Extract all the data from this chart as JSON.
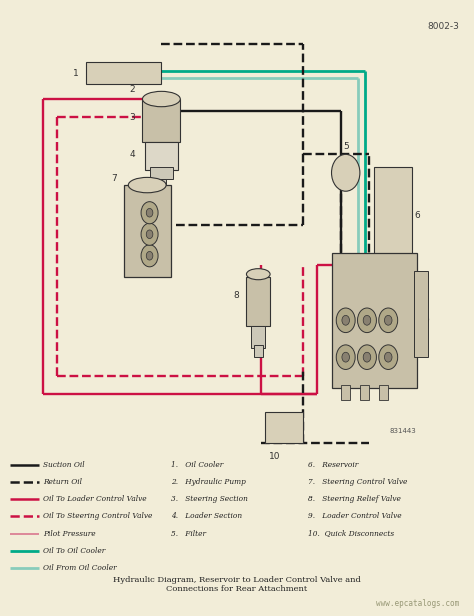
{
  "bg_color": "#f2edd8",
  "title_text": "8002-3",
  "diagram_title": "Hydraulic Diagram, Reservoir to Loader Control Valve and\nConnections for Rear Attachment",
  "watermark": "www.epcatalogs.com",
  "ref_code": "831443",
  "colors": {
    "suction_oil": "#1a1a1a",
    "return_oil": "#1a1a1a",
    "oil_to_loader": "#cc1144",
    "oil_to_steering": "#cc1144",
    "pilot_pressure": "#dd8899",
    "oil_to_cooler": "#00aa88",
    "oil_from_cooler": "#88ccbb"
  },
  "legend_entries": [
    {
      "label": "Suction Oil",
      "color": "#1a1a1a",
      "linestyle": "-",
      "lw": 1.8
    },
    {
      "label": "Return Oil",
      "color": "#1a1a1a",
      "linestyle": "--",
      "lw": 1.8
    },
    {
      "label": "Oil To Loader Control Valve",
      "color": "#cc1144",
      "linestyle": "-",
      "lw": 1.8
    },
    {
      "label": "Oil To Steering Control Valve",
      "color": "#cc1144",
      "linestyle": "--",
      "lw": 1.8
    },
    {
      "label": "Pilot Pressure",
      "color": "#dd8899",
      "linestyle": "-",
      "lw": 1.4
    },
    {
      "label": "Oil To Oil Cooler",
      "color": "#00aa88",
      "linestyle": "-",
      "lw": 2.0
    },
    {
      "label": "Oil From Oil Cooler",
      "color": "#88ccbb",
      "linestyle": "-",
      "lw": 2.0
    }
  ],
  "numbered_items_col1": [
    "1.   Oil Cooler",
    "2.   Hydraulic Pump",
    "3.   Steering Section",
    "4.   Loader Section",
    "5.   Filter"
  ],
  "numbered_items_col2": [
    "6.   Reservoir",
    "7.   Steering Control Valve",
    "8.   Steering Relief Valve",
    "9.   Loader Control Valve",
    "10.  Quick Disconnects"
  ]
}
